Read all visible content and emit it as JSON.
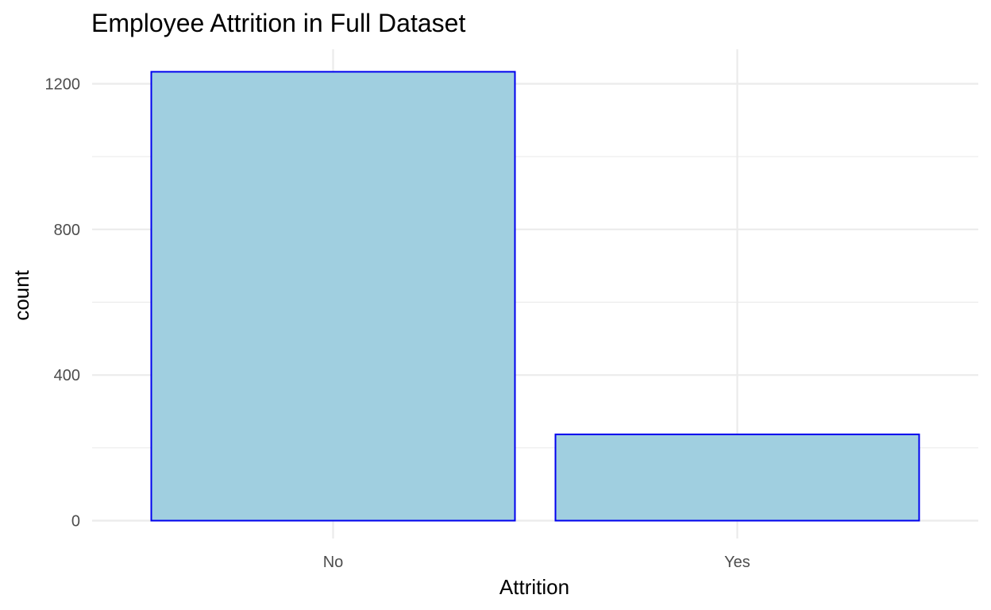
{
  "chart_data": {
    "type": "bar",
    "title": "Employee Attrition in Full Dataset",
    "xlabel": "Attrition",
    "ylabel": "count",
    "categories": [
      "No",
      "Yes"
    ],
    "values": [
      1233,
      237
    ],
    "ylim": [
      0,
      1290
    ],
    "yticks": [
      0,
      400,
      800,
      1200
    ],
    "ytick_labels": [
      "0",
      "400",
      "800",
      "1200"
    ],
    "grid": true,
    "legend": "none",
    "colors": {
      "bar_fill": "#a0cfe0",
      "bar_stroke": "#0000ee",
      "grid": "#ebebeb"
    }
  }
}
